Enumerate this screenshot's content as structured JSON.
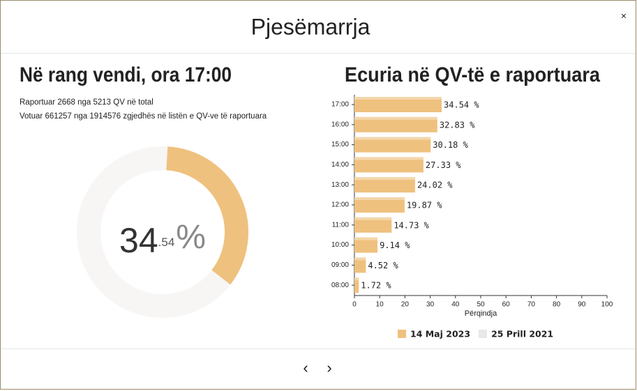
{
  "modal": {
    "title": "Pjesëmarrja",
    "close": "×",
    "prev": "‹",
    "next": "›"
  },
  "left_panel": {
    "heading": "Në rang vendi, ora 17:00",
    "line1": "Raportuar 2668 nga 5213 QV në total",
    "line2": "Votuar 661257 nga 1914576 zgjedhës në listën e QV-ve të raportuara"
  },
  "chart_data": [
    {
      "type": "donut",
      "values": [
        34.54
      ],
      "max": 100,
      "color": "#efc17e",
      "track_color": "#f8f5f5",
      "center_label": {
        "integer": "34",
        "decimal": ".54",
        "unit": "%"
      }
    },
    {
      "type": "bar",
      "orientation": "horizontal",
      "title": "Ecuria në QV-të e raportuara",
      "categories": [
        "17:00",
        "16:00",
        "15:00",
        "14:00",
        "13:00",
        "12:00",
        "11:00",
        "10:00",
        "09:00",
        "08:00"
      ],
      "series": [
        {
          "name": "14 Maj 2023",
          "color": "#efc17e",
          "values": [
            34.54,
            32.83,
            30.18,
            27.33,
            24.02,
            19.87,
            14.73,
            9.14,
            4.52,
            1.72
          ],
          "value_labels": [
            "34.54 %",
            "32.83 %",
            "30.18 %",
            "27.33 %",
            "24.02 %",
            "19.87 %",
            "14.73 %",
            "9.14 %",
            "4.52 %",
            "1.72 %"
          ]
        }
      ],
      "hidden_series": [
        {
          "name": "25 Prill 2021",
          "color": "#e8e8e8"
        }
      ],
      "xlim": [
        0,
        100
      ],
      "xticks": [
        0,
        10,
        20,
        30,
        40,
        50,
        60,
        70,
        80,
        90,
        100
      ],
      "xlabel": "Përqindja"
    }
  ]
}
